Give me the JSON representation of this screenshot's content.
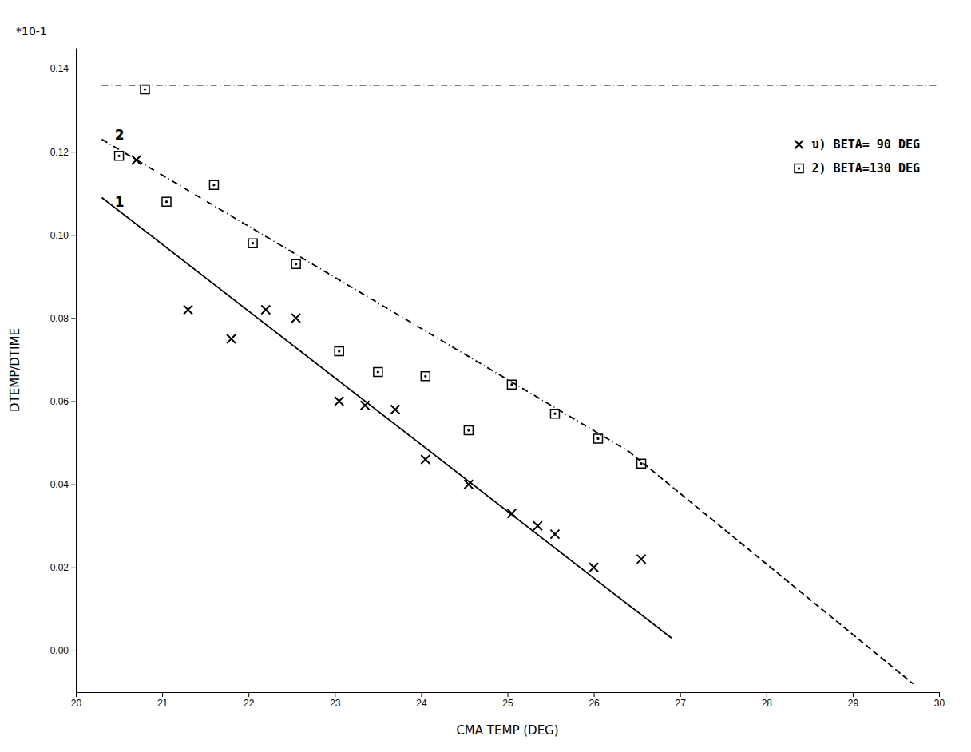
{
  "chart_data": {
    "type": "scatter",
    "xlabel": "CMA TEMP (DEG)",
    "ylabel": "DTEMP/DTIME",
    "xlim": [
      20,
      30
    ],
    "ylim": [
      -0.01,
      0.145
    ],
    "xticks": [
      20,
      21,
      22,
      23,
      24,
      25,
      26,
      27,
      28,
      29,
      30
    ],
    "yticks": [
      {
        "value": 0,
        "label": "0.00"
      },
      0.02,
      0.04,
      0.06,
      0.08,
      {
        "value": 0.1,
        "label": "0.10"
      },
      0.12,
      0.14
    ],
    "grid": false,
    "legend": "upper right",
    "series": [
      {
        "name": "υ) BETA= 90 DEG",
        "type": "scatter",
        "marker": "x",
        "color": "#000000",
        "x": [
          20.7,
          21.3,
          21.8,
          22.2,
          22.55,
          23.05,
          23.35,
          23.7,
          24.05,
          24.55,
          25.05,
          25.35,
          25.55,
          26.0,
          26.55
        ],
        "values": [
          0.118,
          0.082,
          0.075,
          0.082,
          0.08,
          0.06,
          0.059,
          0.058,
          0.046,
          0.04,
          0.033,
          0.03,
          0.028,
          0.02,
          0.022
        ]
      },
      {
        "name": "2) BETA=130 DEG",
        "type": "scatter",
        "marker": "square",
        "color": "#000000",
        "x": [
          20.5,
          21.05,
          21.6,
          22.05,
          22.55,
          23.05,
          23.5,
          24.05,
          24.55,
          25.05,
          25.55,
          26.05,
          26.55
        ],
        "values": [
          0.119,
          0.108,
          0.112,
          0.098,
          0.093,
          0.072,
          0.067,
          0.066,
          0.053,
          0.064,
          0.057,
          0.051,
          0.045
        ]
      },
      {
        "type": "scatter",
        "marker": "square",
        "color": "#000000",
        "x": [
          20.8
        ],
        "values": [
          0.135
        ]
      },
      {
        "type": "line",
        "line_style": "solid",
        "color": "#000000",
        "x": [
          20.3,
          26.9
        ],
        "values": [
          0.109,
          0.003
        ]
      },
      {
        "type": "line",
        "line_style": "dashdot",
        "color": "#000000",
        "x": [
          20.3,
          26.4
        ],
        "values": [
          0.123,
          0.048
        ]
      },
      {
        "type": "line",
        "line_style": "dashed",
        "color": "#000000",
        "x": [
          26.4,
          29.7
        ],
        "values": [
          0.048,
          -0.008
        ]
      },
      {
        "type": "line",
        "line_style": "dashdot",
        "color": "#000000",
        "x": [
          20.3,
          30.0
        ],
        "values": [
          0.136,
          0.136
        ]
      }
    ],
    "annotations": [
      {
        "text": "*10-1"
      },
      {
        "text": "1",
        "x": 20.45,
        "y": 0.108
      },
      {
        "text": "2",
        "x": 20.45,
        "y": 0.124
      }
    ]
  }
}
